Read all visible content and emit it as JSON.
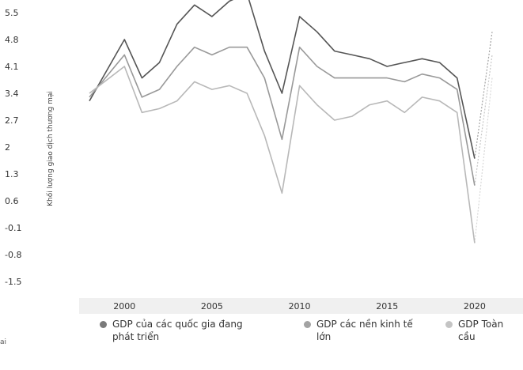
{
  "chart_data": {
    "type": "line",
    "ylabel": "Khối lượng giao dịch thương mại",
    "yticks": [
      "5.5",
      "4.8",
      "4.1",
      "3.4",
      "2.7",
      "2",
      "1.3",
      "0.6",
      "-0.1",
      "-0.8",
      "-1.5"
    ],
    "ytick_values": [
      5.5,
      4.8,
      4.1,
      3.4,
      2.7,
      2.0,
      1.3,
      0.6,
      -0.1,
      -0.8,
      -1.5
    ],
    "ylim": [
      -1.5,
      5.5
    ],
    "xticks": [
      "2000",
      "2005",
      "2010",
      "2015",
      "2020"
    ],
    "xtick_values": [
      2000,
      2005,
      2010,
      2015,
      2020
    ],
    "xlim": [
      1998,
      2021
    ],
    "x": [
      1998,
      2000,
      2001,
      2002,
      2003,
      2004,
      2005,
      2006,
      2007,
      2008,
      2009,
      2010,
      2011,
      2012,
      2013,
      2014,
      2015,
      2016,
      2017,
      2018,
      2019,
      2020,
      2021
    ],
    "series": [
      {
        "name": "GDP của các quốc gia đang phát triển",
        "color": "#555555",
        "values": [
          3.2,
          4.8,
          3.8,
          4.2,
          5.2,
          5.7,
          5.4,
          5.8,
          6.0,
          4.5,
          3.4,
          5.4,
          5.0,
          4.5,
          4.4,
          4.3,
          4.1,
          4.2,
          4.3,
          4.2,
          3.8,
          1.7,
          5.0
        ]
      },
      {
        "name": "GDP các nền kinh tế lớn",
        "color": "#999999",
        "values": [
          3.3,
          4.4,
          3.3,
          3.5,
          4.1,
          4.6,
          4.4,
          4.6,
          4.6,
          3.8,
          2.2,
          4.6,
          4.1,
          3.8,
          3.8,
          3.8,
          3.8,
          3.7,
          3.9,
          3.8,
          3.5,
          1.0,
          4.4
        ]
      },
      {
        "name": "GDP Toàn cầu",
        "color": "#b8b8b8",
        "values": [
          3.4,
          4.1,
          2.9,
          3.0,
          3.2,
          3.7,
          3.5,
          3.6,
          3.4,
          2.3,
          0.8,
          3.6,
          3.1,
          2.7,
          2.8,
          3.1,
          3.2,
          2.9,
          3.3,
          3.2,
          2.9,
          -0.5,
          3.8
        ]
      }
    ],
    "grid": false,
    "legend_position": "bottom"
  },
  "legend": {
    "items": [
      {
        "label_line1": "GDP của các quốc gia đang",
        "label_line2": "phát triển",
        "color": "#7a7a7a"
      },
      {
        "label_line1": "GDP các nền kinh tế",
        "label_line2": "lớn",
        "color": "#a3a3a3"
      },
      {
        "label_line1": "GDP Toàn",
        "label_line2": "cầu",
        "color": "#c4c4c4"
      }
    ]
  },
  "edge_text": "ai"
}
